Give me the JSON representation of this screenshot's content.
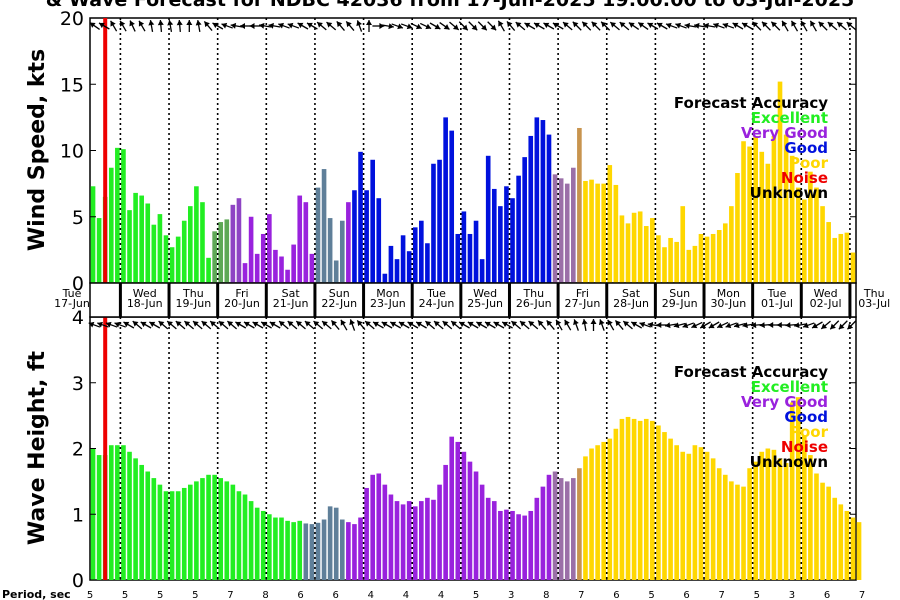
{
  "title": "& Wave Forecast for NDBC 42036 from 17-Jun-2025 19:00:00 to 03-Jul-2025",
  "panels": {
    "wind": {
      "ylabel": "Wind Speed, kts",
      "ylim": [
        0,
        20
      ],
      "yticks": [
        "0",
        "5",
        "10",
        "15",
        "20"
      ]
    },
    "wave": {
      "ylabel": "Wave Height, ft",
      "ylim": [
        0,
        4
      ],
      "yticks": [
        "0",
        "1",
        "2",
        "3",
        "4"
      ]
    }
  },
  "legend": {
    "title": "Forecast Accuracy",
    "items": [
      {
        "label": "Excellent",
        "color": "#22ee22"
      },
      {
        "label": "Very Good",
        "color": "#9922dd"
      },
      {
        "label": "Good",
        "color": "#0011dd"
      },
      {
        "label": "Poor",
        "color": "#ffd700"
      },
      {
        "label": "Noise",
        "color": "#ee0000"
      },
      {
        "label": "Unknown",
        "color": "#000000"
      }
    ]
  },
  "day_labels": [
    {
      "dow": "Tue",
      "date": "17-Jun"
    },
    {
      "dow": "Wed",
      "date": "18-Jun"
    },
    {
      "dow": "Thu",
      "date": "19-Jun"
    },
    {
      "dow": "Fri",
      "date": "20-Jun"
    },
    {
      "dow": "Sat",
      "date": "21-Jun"
    },
    {
      "dow": "Sun",
      "date": "22-Jun"
    },
    {
      "dow": "Mon",
      "date": "23-Jun"
    },
    {
      "dow": "Tue",
      "date": "24-Jun"
    },
    {
      "dow": "Wed",
      "date": "25-Jun"
    },
    {
      "dow": "Thu",
      "date": "26-Jun"
    },
    {
      "dow": "Fri",
      "date": "27-Jun"
    },
    {
      "dow": "Sat",
      "date": "28-Jun"
    },
    {
      "dow": "Sun",
      "date": "29-Jun"
    },
    {
      "dow": "Mon",
      "date": "30-Jun"
    },
    {
      "dow": "Tue",
      "date": "01-Jul"
    },
    {
      "dow": "Wed",
      "date": "02-Jul"
    },
    {
      "dow": "Thu",
      "date": "03-Jul"
    }
  ],
  "period_label": "Period, sec",
  "periods": [
    "5",
    "5",
    "5",
    "5",
    "7",
    "8",
    "6",
    "6",
    "4",
    "4",
    "4",
    "5",
    "3",
    "8",
    "7",
    "6",
    "5",
    "6",
    "7",
    "5",
    "3",
    "6",
    "7"
  ],
  "chart_data": {
    "type": "bar",
    "x_unit": "hours since 17-Jun 19:00 (3-hourly)",
    "wind_speed": [
      7.3,
      4.9,
      6.5,
      8.7,
      10.2,
      10.1,
      5.5,
      6.8,
      6.6,
      6.0,
      4.4,
      5.2,
      3.6,
      2.7,
      3.5,
      4.7,
      5.8,
      7.3,
      6.1,
      1.9,
      3.9,
      4.6,
      4.8,
      5.9,
      6.4,
      1.5,
      5.0,
      2.2,
      3.7,
      5.2,
      2.5,
      2.0,
      1.0,
      2.9,
      6.6,
      6.1,
      2.2,
      7.2,
      8.6,
      4.9,
      1.7,
      4.7,
      6.1,
      7.0,
      9.9,
      7.0,
      9.3,
      6.4,
      0.7,
      2.8,
      1.8,
      3.6,
      2.4,
      4.2,
      4.7,
      3.0,
      9.0,
      9.3,
      12.5,
      11.5,
      3.7,
      5.4,
      3.7,
      4.7,
      1.8,
      9.6,
      7.1,
      5.8,
      7.3,
      6.4,
      8.1,
      9.5,
      11.1,
      12.5,
      12.3,
      11.2,
      8.2,
      7.9,
      7.5,
      8.7,
      11.7,
      7.7,
      7.8,
      7.5,
      7.5,
      8.9,
      7.4,
      5.1,
      4.5,
      5.3,
      5.4,
      4.3,
      4.9,
      3.6,
      2.7,
      3.4,
      3.1,
      5.8,
      2.5,
      2.8,
      3.7,
      3.5,
      3.7,
      4.0,
      4.5,
      5.8,
      8.3,
      10.7,
      10.3,
      11.1,
      9.9,
      9.0,
      11.1,
      15.2,
      11.2,
      9.6,
      7.2,
      6.3,
      8.4,
      7.2,
      5.8,
      4.6,
      3.4,
      3.7,
      3.8,
      2.3
    ],
    "wave_height": [
      2.0,
      1.9,
      1.9,
      2.05,
      2.05,
      2.05,
      1.95,
      1.85,
      1.75,
      1.65,
      1.55,
      1.45,
      1.35,
      1.35,
      1.35,
      1.4,
      1.45,
      1.5,
      1.55,
      1.6,
      1.6,
      1.55,
      1.5,
      1.45,
      1.35,
      1.3,
      1.2,
      1.1,
      1.05,
      1.0,
      0.95,
      0.95,
      0.9,
      0.88,
      0.9,
      0.86,
      0.85,
      0.87,
      0.92,
      1.12,
      1.1,
      0.92,
      0.88,
      0.85,
      0.95,
      1.4,
      1.6,
      1.62,
      1.45,
      1.3,
      1.2,
      1.15,
      1.2,
      1.12,
      1.2,
      1.25,
      1.22,
      1.45,
      1.75,
      2.18,
      2.1,
      1.95,
      1.8,
      1.65,
      1.45,
      1.25,
      1.2,
      1.05,
      1.07,
      1.05,
      1.0,
      0.98,
      1.05,
      1.25,
      1.42,
      1.6,
      1.65,
      1.55,
      1.5,
      1.55,
      1.7,
      1.88,
      2.0,
      2.05,
      2.1,
      2.15,
      2.3,
      2.45,
      2.48,
      2.45,
      2.42,
      2.45,
      2.42,
      2.35,
      2.25,
      2.15,
      2.05,
      1.95,
      1.92,
      2.05,
      2.02,
      1.95,
      1.85,
      1.7,
      1.6,
      1.5,
      1.45,
      1.42,
      1.7,
      1.8,
      1.95,
      2.0,
      1.98,
      1.85,
      1.78,
      2.7,
      2.78,
      2.2,
      1.9,
      1.62,
      1.48,
      1.42,
      1.25,
      1.15,
      1.05,
      0.95,
      0.88
    ],
    "band_colors": [
      {
        "from": 0,
        "to": 19,
        "color": "#22ee22"
      },
      {
        "from": 20,
        "to": 22,
        "color": "#5ea856"
      },
      {
        "from": 23,
        "to": 24,
        "color": "#8e44c4"
      },
      {
        "from": 25,
        "to": 36,
        "color": "#9922dd"
      },
      {
        "from": 37,
        "to": 41,
        "color": "#5f7f99"
      },
      {
        "from": 42,
        "to": 42,
        "color": "#9922dd"
      },
      {
        "from": 43,
        "to": 75,
        "color": "#0011dd"
      },
      {
        "from": 76,
        "to": 79,
        "color": "#9b6fa8"
      },
      {
        "from": 80,
        "to": 80,
        "color": "#c8944e"
      },
      {
        "from": 81,
        "to": 127,
        "color": "#ffd700"
      }
    ],
    "wave_band_colors": [
      {
        "from": 0,
        "to": 34,
        "color": "#22ee22"
      },
      {
        "from": 35,
        "to": 41,
        "color": "#5f7f99"
      },
      {
        "from": 42,
        "to": 75,
        "color": "#9922dd"
      },
      {
        "from": 76,
        "to": 79,
        "color": "#9b6fa8"
      },
      {
        "from": 80,
        "to": 80,
        "color": "#c8944e"
      },
      {
        "from": 81,
        "to": 127,
        "color": "#ffd700"
      }
    ],
    "wind_arrow_directions_deg": [
      -145,
      -150,
      -120,
      -120,
      -115,
      -120,
      -100,
      -95,
      -100,
      -95,
      -90,
      -100,
      -130,
      -150,
      -160,
      -170,
      -180,
      -180,
      -170,
      -170,
      -160,
      -160,
      -150,
      -150,
      -140,
      -140,
      -130,
      -130,
      -110,
      -90,
      0,
      10,
      20,
      20,
      25,
      25,
      30,
      35,
      40,
      45,
      45,
      45,
      45,
      -120,
      -130,
      -140,
      -150,
      -150,
      -150,
      -150,
      -140,
      -135,
      -135,
      -135,
      -135,
      -140,
      -140,
      -145,
      -145,
      -150,
      -150,
      -160,
      -160,
      -170,
      -170,
      -170,
      -160,
      -160,
      -150,
      -150,
      -135,
      -135,
      -135,
      -120,
      -120,
      -120,
      -120,
      -135,
      -140,
      -140,
      -140
    ],
    "wave_arrow_directions_deg": [
      -160,
      -160,
      -160,
      -160,
      -150,
      -140,
      -150,
      -150,
      -140,
      -140,
      -140,
      -140,
      -140,
      -140,
      -140,
      -140,
      -140,
      -150,
      -150,
      -150,
      -150,
      -150,
      -140,
      -140,
      -140,
      -140,
      -140,
      -140,
      -130,
      -120,
      -110,
      -130,
      -140,
      -150,
      -150,
      -150,
      -150,
      -150,
      -150,
      -140,
      -140,
      -140,
      -140,
      -150,
      -150,
      -150,
      -150,
      -150,
      -150,
      -140,
      -140,
      -140,
      -130,
      -130,
      -120,
      -120,
      -110,
      -100,
      -90,
      -110,
      -120,
      -130,
      -140,
      -150,
      -160,
      -170,
      -180,
      170,
      165,
      160,
      155,
      150,
      150,
      155,
      160,
      165,
      170,
      175,
      175,
      180,
      180,
      175,
      170,
      160,
      150,
      140,
      135,
      135,
      135
    ],
    "noise_marker_index": 2
  }
}
